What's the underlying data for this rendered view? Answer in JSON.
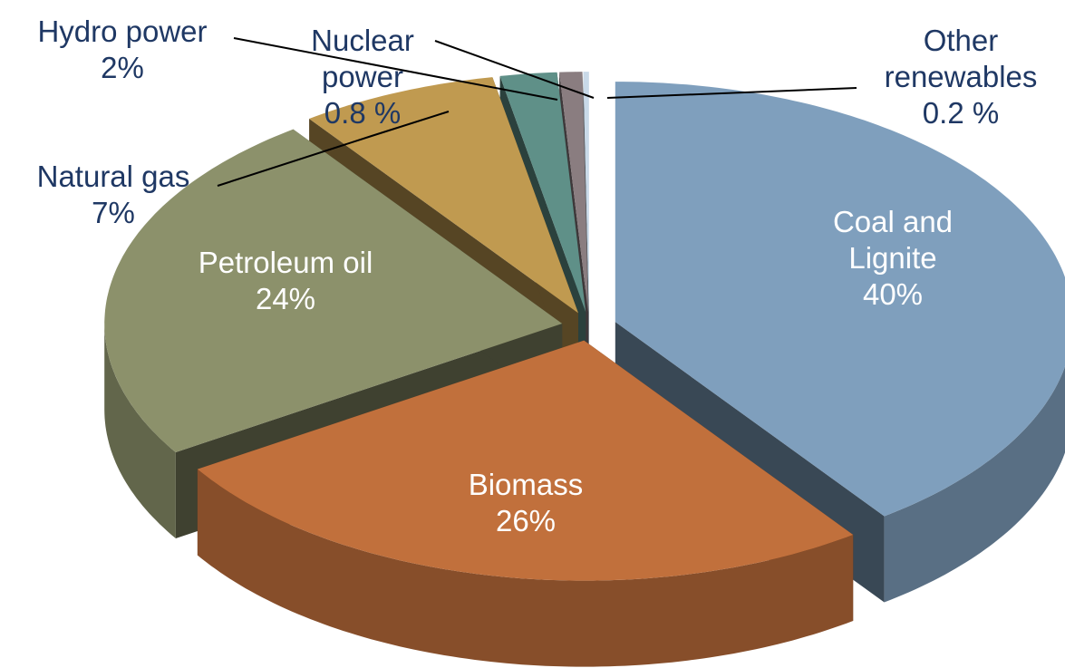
{
  "chart_data": {
    "type": "pie",
    "categories": [
      "Coal and Lignite",
      "Biomass",
      "Petroleum oil",
      "Natural gas",
      "Hydro power",
      "Nuclear power",
      "Other renewables"
    ],
    "values": [
      40,
      26,
      24,
      7,
      2,
      0.8,
      0.2
    ],
    "value_labels": [
      "40%",
      "26%",
      "24%",
      "7%",
      "2%",
      "0.8 %",
      "0.2 %"
    ],
    "colors": [
      "#7f9fbd",
      "#c1703c",
      "#8c916b",
      "#c09a50",
      "#5f9088",
      "#8a7d80",
      "#c9d9e8"
    ],
    "start_angle": 0,
    "direction": "clockwise",
    "three_d": true
  }
}
